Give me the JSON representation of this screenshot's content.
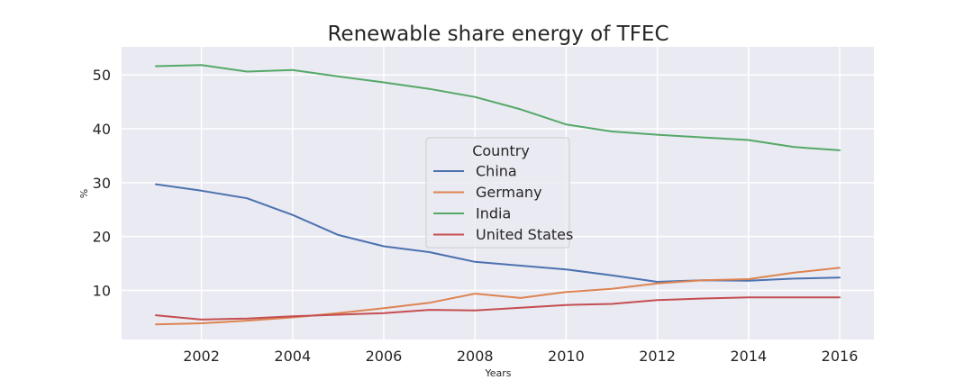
{
  "chart_data": {
    "type": "line",
    "title": "Renewable share energy of TFEC",
    "xlabel": "Years",
    "ylabel": "%",
    "xlim": [
      2000.25,
      2016.75
    ],
    "ylim": [
      0.9,
      55.2
    ],
    "xticks": [
      2002,
      2004,
      2006,
      2008,
      2010,
      2012,
      2014,
      2016
    ],
    "yticks": [
      10,
      20,
      30,
      40,
      50
    ],
    "grid": true,
    "legend": {
      "title": "Country",
      "placement": "center"
    },
    "x": [
      2001,
      2002,
      2003,
      2004,
      2005,
      2006,
      2007,
      2008,
      2009,
      2010,
      2011,
      2012,
      2013,
      2014,
      2015,
      2016
    ],
    "series": [
      {
        "name": "China",
        "color": "#4c72b0",
        "values": [
          29.7,
          28.5,
          27.1,
          24.0,
          20.3,
          18.2,
          17.1,
          15.3,
          14.6,
          13.9,
          12.8,
          11.6,
          11.9,
          11.8,
          12.2,
          12.4
        ]
      },
      {
        "name": "Germany",
        "color": "#dd8452",
        "values": [
          3.7,
          3.9,
          4.4,
          5.0,
          5.8,
          6.7,
          7.7,
          9.4,
          8.6,
          9.7,
          10.3,
          11.3,
          11.9,
          12.1,
          13.3,
          14.2
        ]
      },
      {
        "name": "India",
        "color": "#55a868",
        "values": [
          51.6,
          51.8,
          50.6,
          50.9,
          49.7,
          48.6,
          47.4,
          45.9,
          43.6,
          40.8,
          39.5,
          38.9,
          38.4,
          37.9,
          36.6,
          36.0
        ]
      },
      {
        "name": "United States",
        "color": "#c44e52",
        "values": [
          5.4,
          4.6,
          4.8,
          5.2,
          5.5,
          5.8,
          6.4,
          6.3,
          6.8,
          7.3,
          7.5,
          8.2,
          8.5,
          8.7,
          8.7,
          8.7
        ]
      }
    ]
  }
}
